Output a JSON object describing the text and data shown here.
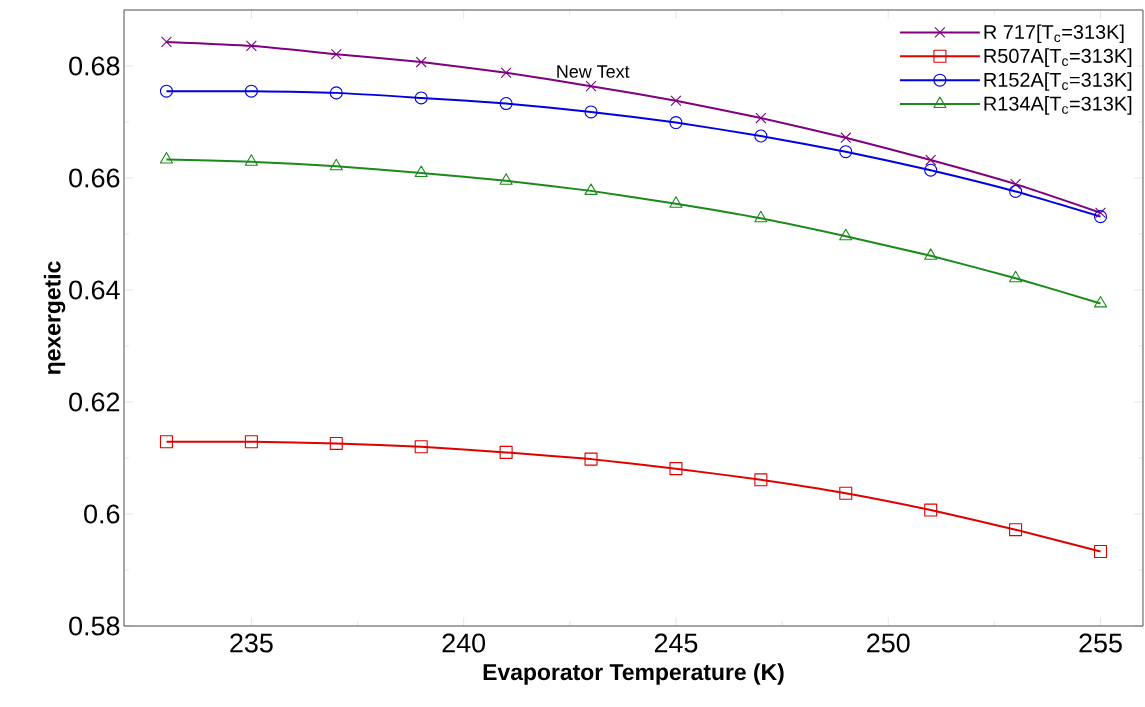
{
  "chart_data": {
    "type": "line",
    "xlabel": "Evaporator Temperature (K)",
    "ylabel": "ηexergetic",
    "x": [
      233,
      235,
      237,
      239,
      241,
      243,
      245,
      247,
      249,
      251,
      253,
      255
    ],
    "series": [
      {
        "name": "R 717[T$_{c}$=313K]",
        "color": "#800080",
        "marker": "cross",
        "values": [
          0.6843,
          0.6836,
          0.6821,
          0.6807,
          0.6788,
          0.6764,
          0.6738,
          0.6707,
          0.6672,
          0.6632,
          0.6589,
          0.6538
        ]
      },
      {
        "name": "R507A[T$_{c}$=313K]",
        "color": "#e00000",
        "marker": "square",
        "values": [
          0.6129,
          0.6129,
          0.6126,
          0.612,
          0.611,
          0.6098,
          0.6081,
          0.6061,
          0.6037,
          0.6007,
          0.5972,
          0.5933
        ]
      },
      {
        "name": "R152A[T$_{c}$=313K]",
        "color": "#0000e0",
        "marker": "circle",
        "values": [
          0.6755,
          0.6755,
          0.6752,
          0.6743,
          0.6733,
          0.6718,
          0.6699,
          0.6675,
          0.6647,
          0.6614,
          0.6576,
          0.6531
        ]
      },
      {
        "name": "R134A[T$_{c}$=313K]",
        "color": "#1a8a1a",
        "marker": "triangle",
        "values": [
          0.6633,
          0.6629,
          0.6621,
          0.6609,
          0.6595,
          0.6577,
          0.6554,
          0.6528,
          0.6496,
          0.6461,
          0.6421,
          0.6376
        ]
      }
    ],
    "xlim": [
      232,
      256
    ],
    "ylim": [
      0.58,
      0.69
    ],
    "xticks": [
      235,
      240,
      245,
      250,
      255
    ],
    "yticks": [
      0.58,
      0.6,
      0.62,
      0.64,
      0.66,
      0.68
    ],
    "annotations": [
      "New Text"
    ],
    "legend": "top right",
    "grid": false,
    "line_style": "solid"
  }
}
